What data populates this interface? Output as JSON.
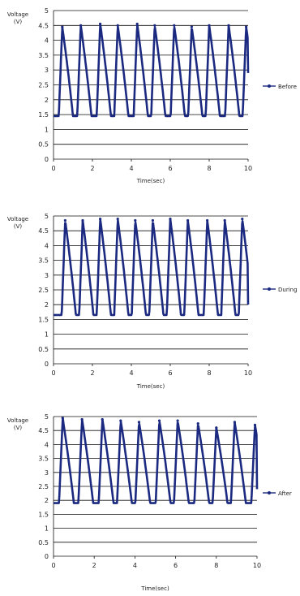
{
  "chart_data": [
    {
      "type": "line",
      "ylabel_line1": "Voltage",
      "ylabel_line2": "(V)",
      "xlabel": "Time(sec)",
      "xlim": [
        0,
        10
      ],
      "ylim": [
        0,
        5
      ],
      "x_ticks": [
        "0",
        "2",
        "4",
        "6",
        "8",
        "10"
      ],
      "y_ticks": [
        "0",
        "0.5",
        "1",
        "1.5",
        "2",
        "2.5",
        "3",
        "3.5",
        "4",
        "4.5",
        "5"
      ],
      "grid": true,
      "legend_position": "right",
      "series": [
        {
          "name": "Before",
          "color": "#1b2a80",
          "baseline": 1.45,
          "peaks": [
            {
              "t": 0.45,
              "v": 4.45
            },
            {
              "t": 1.4,
              "v": 4.5
            },
            {
              "t": 2.4,
              "v": 4.55
            },
            {
              "t": 3.3,
              "v": 4.5
            },
            {
              "t": 4.3,
              "v": 4.55
            },
            {
              "t": 5.2,
              "v": 4.5
            },
            {
              "t": 6.2,
              "v": 4.5
            },
            {
              "t": 7.1,
              "v": 4.45
            },
            {
              "t": 8.0,
              "v": 4.5
            },
            {
              "t": 9.0,
              "v": 4.5
            },
            {
              "t": 9.9,
              "v": 4.45
            }
          ],
          "end_value": 2.9
        }
      ]
    },
    {
      "type": "line",
      "ylabel_line1": "Voltage",
      "ylabel_line2": "(V)",
      "xlabel": "Time(sec)",
      "xlim": [
        0,
        10
      ],
      "ylim": [
        0,
        5
      ],
      "x_ticks": [
        "0",
        "2",
        "4",
        "6",
        "8",
        "10"
      ],
      "y_ticks": [
        "0",
        "0.5",
        "1",
        "1.5",
        "2",
        "2.5",
        "3",
        "3.5",
        "4",
        "4.5",
        "5"
      ],
      "grid": true,
      "legend_position": "right",
      "series": [
        {
          "name": "During",
          "color": "#1b2a80",
          "baseline": 1.65,
          "peaks": [
            {
              "t": 0.6,
              "v": 4.85
            },
            {
              "t": 1.5,
              "v": 4.85
            },
            {
              "t": 2.4,
              "v": 4.9
            },
            {
              "t": 3.3,
              "v": 4.9
            },
            {
              "t": 4.2,
              "v": 4.85
            },
            {
              "t": 5.1,
              "v": 4.85
            },
            {
              "t": 6.0,
              "v": 4.9
            },
            {
              "t": 6.9,
              "v": 4.85
            },
            {
              "t": 7.9,
              "v": 4.85
            },
            {
              "t": 8.8,
              "v": 4.85
            },
            {
              "t": 9.7,
              "v": 4.9
            }
          ],
          "end_value": 2.0
        }
      ]
    },
    {
      "type": "line",
      "ylabel_line1": "Voltage",
      "ylabel_line2": "(V)",
      "xlabel": "Time(sec)",
      "xlim": [
        0,
        10
      ],
      "ylim": [
        0,
        5
      ],
      "x_ticks": [
        "0",
        "2",
        "4",
        "6",
        "8",
        "10"
      ],
      "y_ticks": [
        "0",
        "0.5",
        "1",
        "1.5",
        "2",
        "2.5",
        "3",
        "3.5",
        "4",
        "4.5",
        "5"
      ],
      "grid": true,
      "legend_position": "right",
      "series": [
        {
          "name": "After",
          "color": "#1b2a80",
          "baseline": 1.9,
          "peaks": [
            {
              "t": 0.45,
              "v": 4.95
            },
            {
              "t": 1.4,
              "v": 4.9
            },
            {
              "t": 2.4,
              "v": 4.9
            },
            {
              "t": 3.3,
              "v": 4.85
            },
            {
              "t": 4.2,
              "v": 4.8
            },
            {
              "t": 5.2,
              "v": 4.85
            },
            {
              "t": 6.1,
              "v": 4.85
            },
            {
              "t": 7.1,
              "v": 4.75
            },
            {
              "t": 8.0,
              "v": 4.6
            },
            {
              "t": 8.9,
              "v": 4.8
            },
            {
              "t": 9.9,
              "v": 4.7
            }
          ],
          "end_value": 2.4
        }
      ]
    }
  ]
}
